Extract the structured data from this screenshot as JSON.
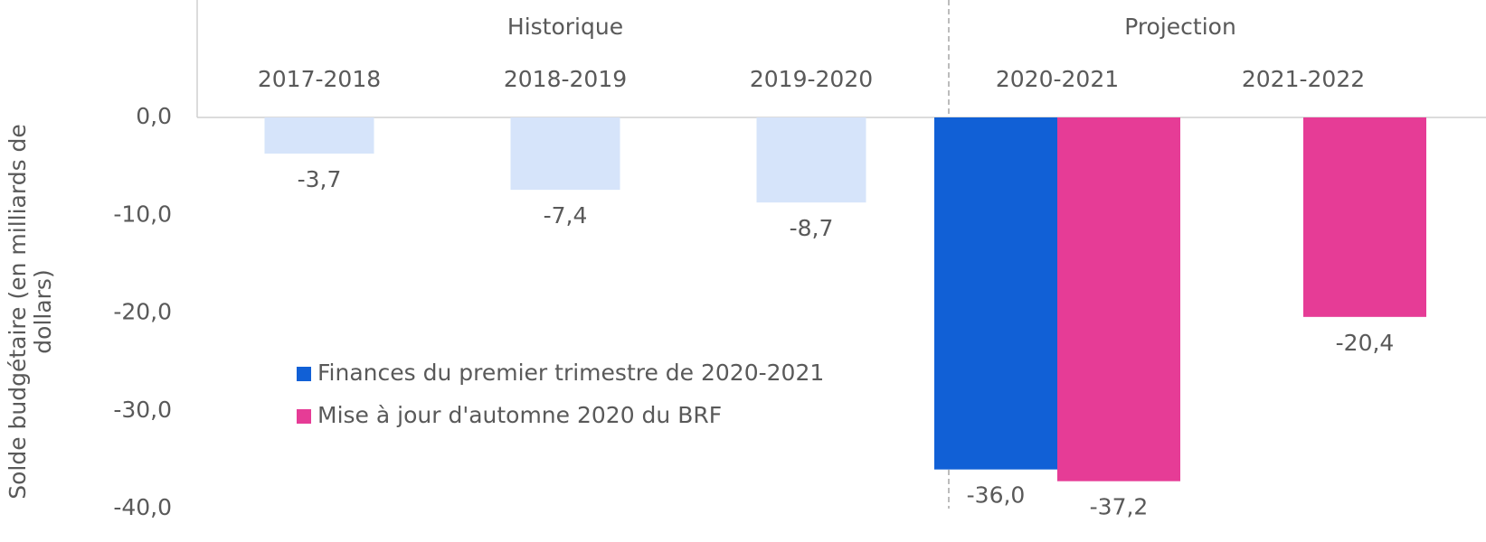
{
  "chart_data": {
    "type": "bar",
    "y_label": "Solde budgétaire (en milliards de dollars)",
    "groups": [
      {
        "name": "Historique",
        "span": 3
      },
      {
        "name": "Projection",
        "span": 2
      }
    ],
    "categories": [
      "2017-2018",
      "2018-2019",
      "2019-2020",
      "2020-2021",
      "2021-2022"
    ],
    "series": [
      {
        "color": "#d6e4fa",
        "values": [
          -3.7,
          -7.4,
          -8.7,
          null,
          null
        ],
        "value_labels": [
          "-3,7",
          "-7,4",
          "-8,7",
          null,
          null
        ]
      },
      {
        "name": "Finances du premier trimestre de 2020-2021",
        "color": "#1160d6",
        "values": [
          null,
          null,
          null,
          -36.0,
          null
        ],
        "value_labels": [
          null,
          null,
          null,
          "-36,0",
          null
        ]
      },
      {
        "name": "Mise à jour d'automne 2020 du BRF",
        "color": "#e63c96",
        "values": [
          null,
          null,
          null,
          -37.2,
          -20.4
        ],
        "value_labels": [
          null,
          null,
          null,
          "-37,2",
          "-20,4"
        ]
      }
    ],
    "ylim": [
      -40,
      0
    ],
    "yticks": [
      {
        "value": 0,
        "label": "0,0"
      },
      {
        "value": -10,
        "label": "-10,0"
      },
      {
        "value": -20,
        "label": "-20,0"
      },
      {
        "value": -30,
        "label": "-30,0"
      },
      {
        "value": -40,
        "label": "-40,0"
      }
    ]
  }
}
